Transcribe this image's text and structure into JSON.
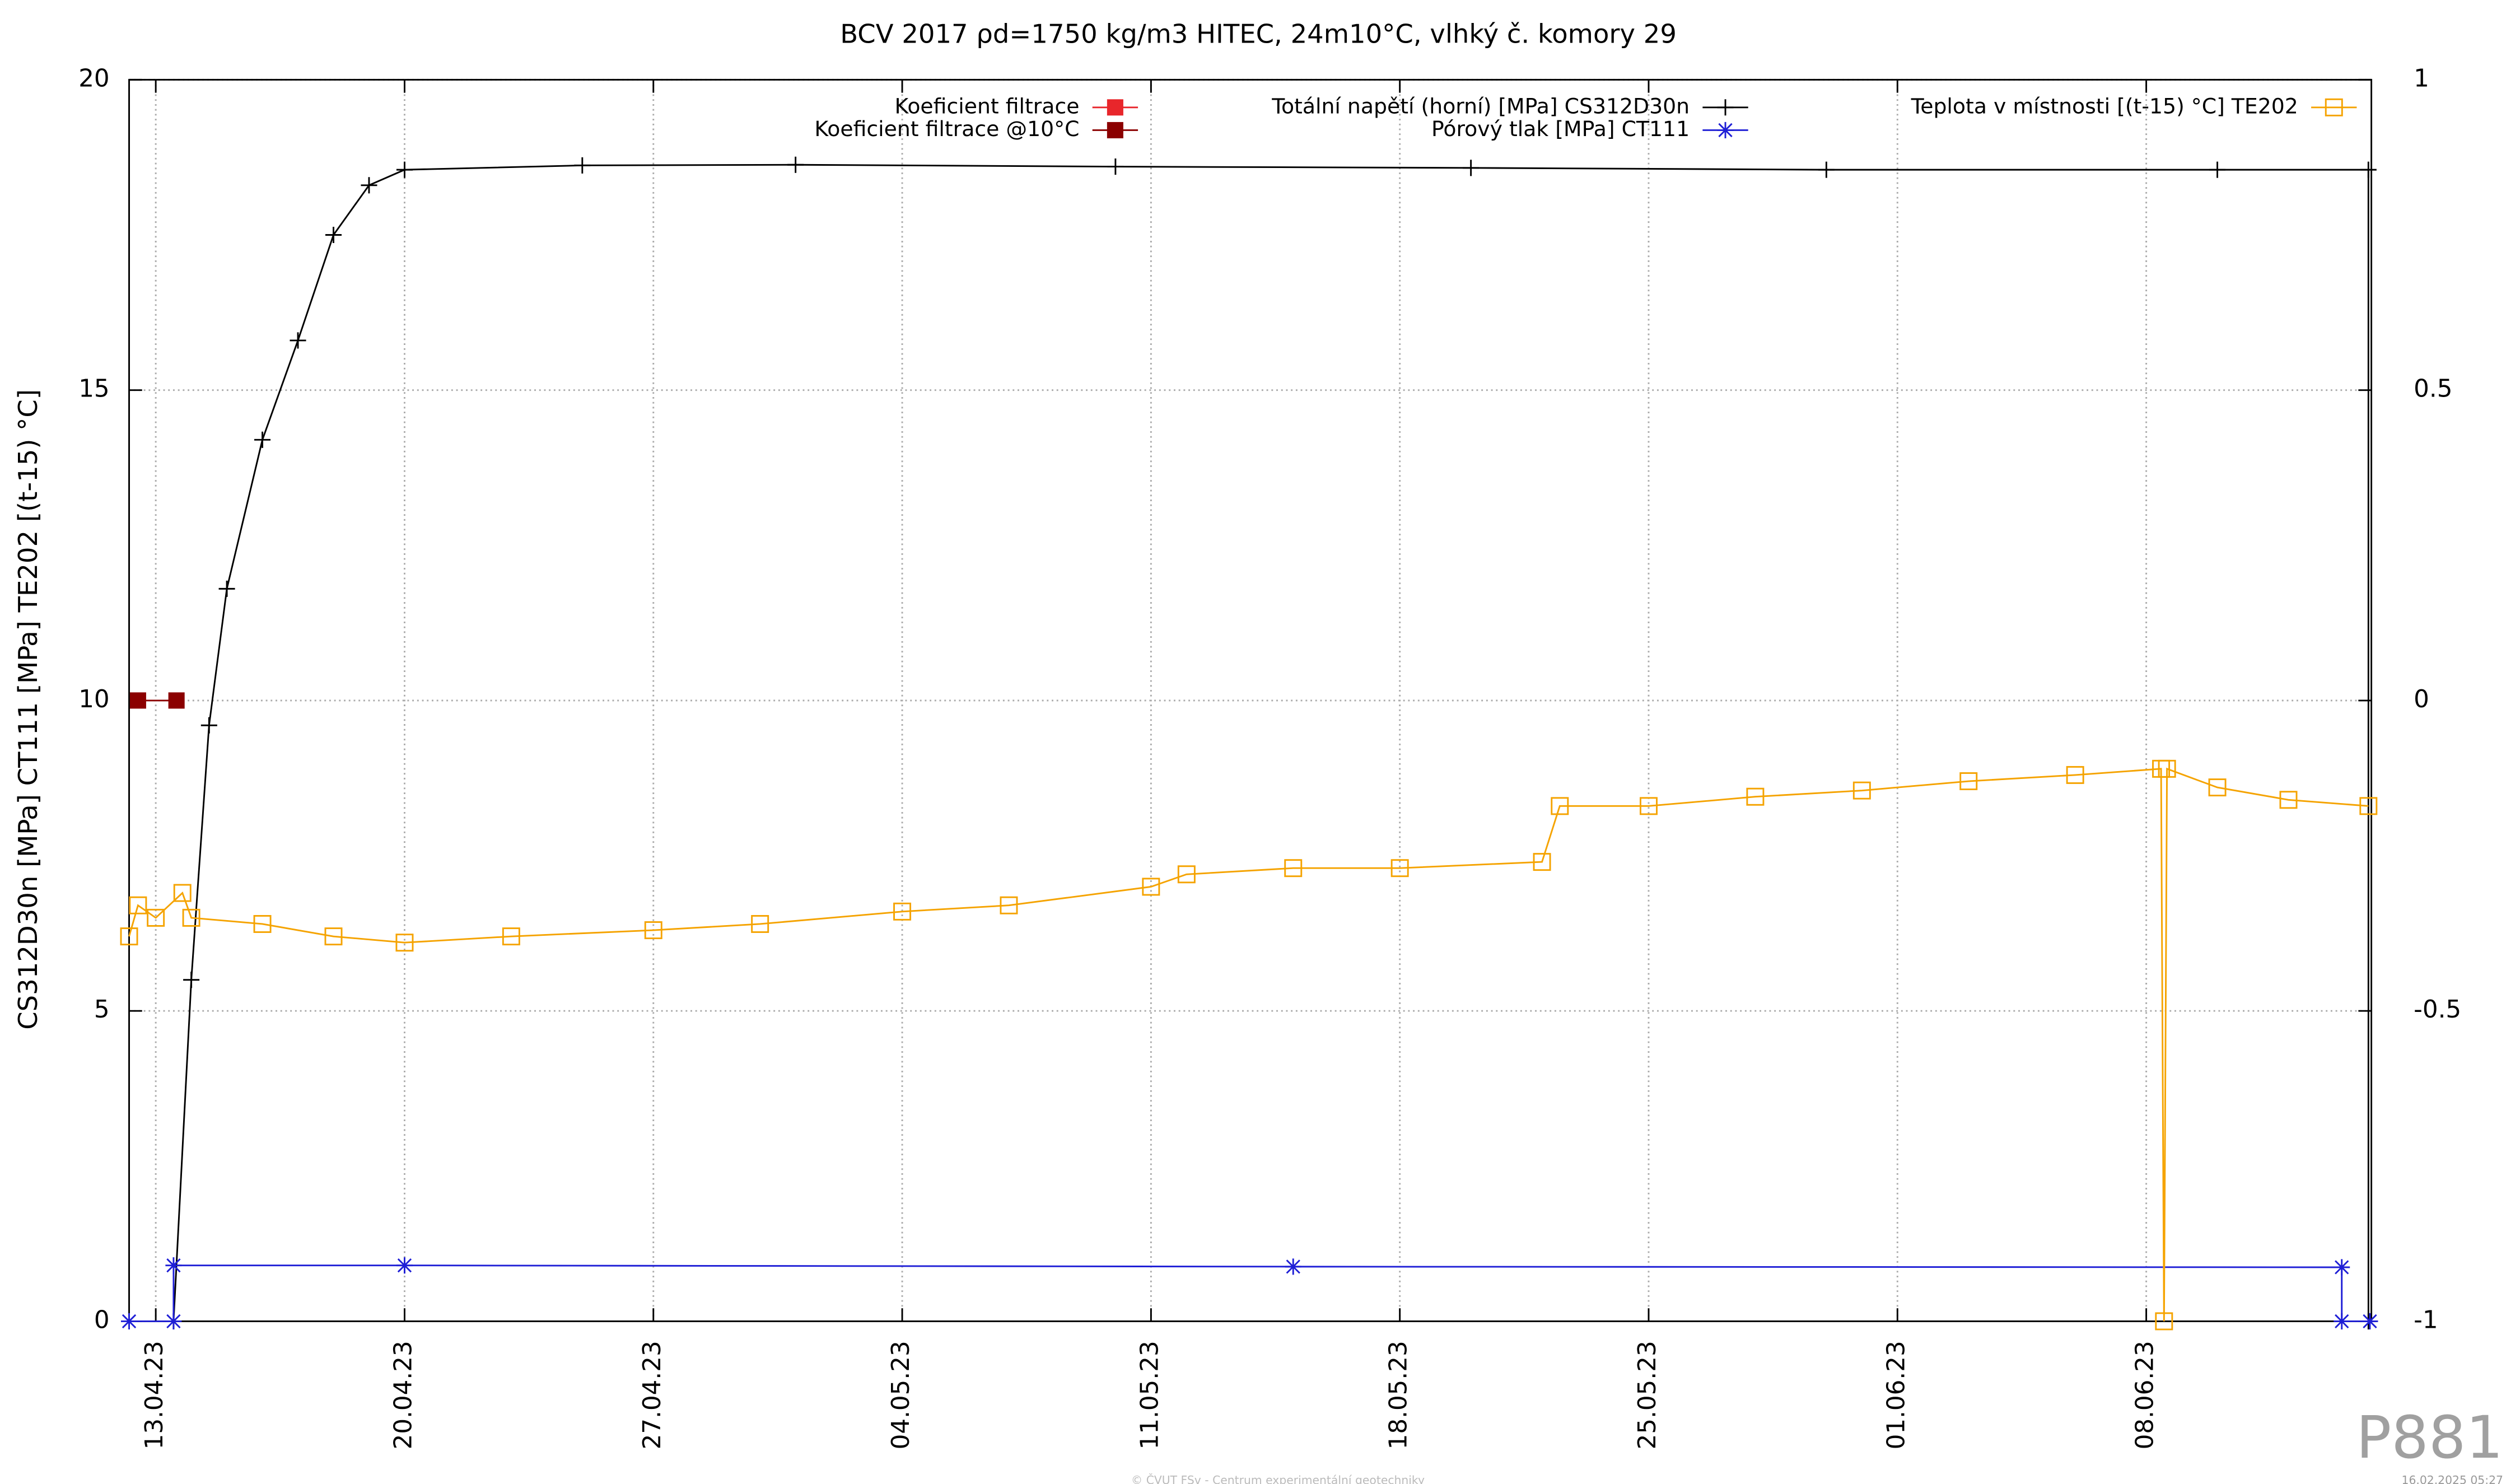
{
  "chart_data": {
    "type": "line",
    "title": "BCV 2017 ρd=1750 kg/m3 HITEC, 24m10°C, vlhký č. komory 29",
    "ylabel": "CS312D30n [MPa] CT111 [MPa] TE202 [(t-15) °C]",
    "watermark": "P881",
    "footer": "© ČVUT FSv - Centrum experimentální geotechniky",
    "timestamp": "16.02.2025 05:27",
    "xlim": [
      "2023-04-12T06:00",
      "2023-06-14T08:00"
    ],
    "xticks": [
      {
        "value": "2023-04-13T00:00",
        "label": "13.04.23"
      },
      {
        "value": "2023-04-20T00:00",
        "label": "20.04.23"
      },
      {
        "value": "2023-04-27T00:00",
        "label": "27.04.23"
      },
      {
        "value": "2023-05-04T00:00",
        "label": "04.05.23"
      },
      {
        "value": "2023-05-11T00:00",
        "label": "11.05.23"
      },
      {
        "value": "2023-05-18T00:00",
        "label": "18.05.23"
      },
      {
        "value": "2023-05-25T00:00",
        "label": "25.05.23"
      },
      {
        "value": "2023-06-01T00:00",
        "label": "01.06.23"
      },
      {
        "value": "2023-06-08T00:00",
        "label": "08.06.23"
      }
    ],
    "ylim": [
      0,
      20
    ],
    "yticks": [
      0,
      5,
      10,
      15,
      20
    ],
    "y2lim": [
      -1,
      1
    ],
    "y2ticks": [
      -1,
      -0.5,
      0,
      0.5,
      1
    ],
    "grid": true,
    "series": [
      {
        "name": "Koeficient filtrace",
        "color": "#e8262b",
        "marker": "square-filled",
        "axis": "y2",
        "x": [
          "2023-04-12T12:00"
        ],
        "values": [
          null
        ]
      },
      {
        "name": "Koeficient filtrace @10°C",
        "color": "#8b0000",
        "marker": "square-filled",
        "axis": "y2",
        "x": [
          "2023-04-12T12:00",
          "2023-04-13T14:00"
        ],
        "values": [
          0,
          0
        ]
      },
      {
        "name": "Totální napětí (horní) [MPa] CS312D30n",
        "color": "#000000",
        "marker": "plus",
        "x": [
          "2023-04-13T12:00",
          "2023-04-14T00:00",
          "2023-04-14T12:00",
          "2023-04-15T00:00",
          "2023-04-16T00:00",
          "2023-04-17T00:00",
          "2023-04-18T00:00",
          "2023-04-19T00:00",
          "2023-04-20T00:00",
          "2023-04-25T00:00",
          "2023-05-01T00:00",
          "2023-05-10T00:00",
          "2023-05-20T00:00",
          "2023-05-30T00:00",
          "2023-06-10T00:00",
          "2023-06-14T06:00",
          "2023-06-14T06:01"
        ],
        "values": [
          0,
          5.5,
          9.6,
          11.8,
          14.2,
          15.8,
          17.5,
          18.3,
          18.55,
          18.62,
          18.63,
          18.6,
          18.58,
          18.55,
          18.55,
          18.55,
          0
        ]
      },
      {
        "name": "Pórový tlak [MPa] CT111",
        "color": "#1f1fd6",
        "marker": "star",
        "x": [
          "2023-04-12T06:00",
          "2023-04-13T12:00",
          "2023-04-13T12:01",
          "2023-04-20T00:00",
          "2023-05-15T00:00",
          "2023-06-13T12:00",
          "2023-06-13T12:01",
          "2023-06-14T07:00"
        ],
        "values": [
          0,
          0,
          0.9,
          0.9,
          0.88,
          0.87,
          0,
          0
        ]
      },
      {
        "name": "Teplota v místnosti [(t-15) °C] TE202",
        "color": "#f5a300",
        "marker": "square-open",
        "x": [
          "2023-04-12T06:00",
          "2023-04-12T12:00",
          "2023-04-13T00:00",
          "2023-04-13T18:00",
          "2023-04-14T00:00",
          "2023-04-16T00:00",
          "2023-04-18T00:00",
          "2023-04-20T00:00",
          "2023-04-23T00:00",
          "2023-04-27T00:00",
          "2023-04-30T00:00",
          "2023-05-04T00:00",
          "2023-05-07T00:00",
          "2023-05-11T00:00",
          "2023-05-12T00:00",
          "2023-05-15T00:00",
          "2023-05-18T00:00",
          "2023-05-22T00:00",
          "2023-05-22T12:00",
          "2023-05-25T00:00",
          "2023-05-28T00:00",
          "2023-05-31T00:00",
          "2023-06-03T00:00",
          "2023-06-06T00:00",
          "2023-06-08T10:00",
          "2023-06-08T12:00",
          "2023-06-08T14:00",
          "2023-06-10T00:00",
          "2023-06-12T00:00",
          "2023-06-14T06:00"
        ],
        "values": [
          6.2,
          6.7,
          6.5,
          6.9,
          6.5,
          6.4,
          6.2,
          6.1,
          6.2,
          6.3,
          6.4,
          6.6,
          6.7,
          7.0,
          7.2,
          7.3,
          7.3,
          7.4,
          8.3,
          8.3,
          8.45,
          8.55,
          8.7,
          8.8,
          8.9,
          0,
          8.9,
          8.6,
          8.4,
          8.3
        ]
      }
    ]
  }
}
